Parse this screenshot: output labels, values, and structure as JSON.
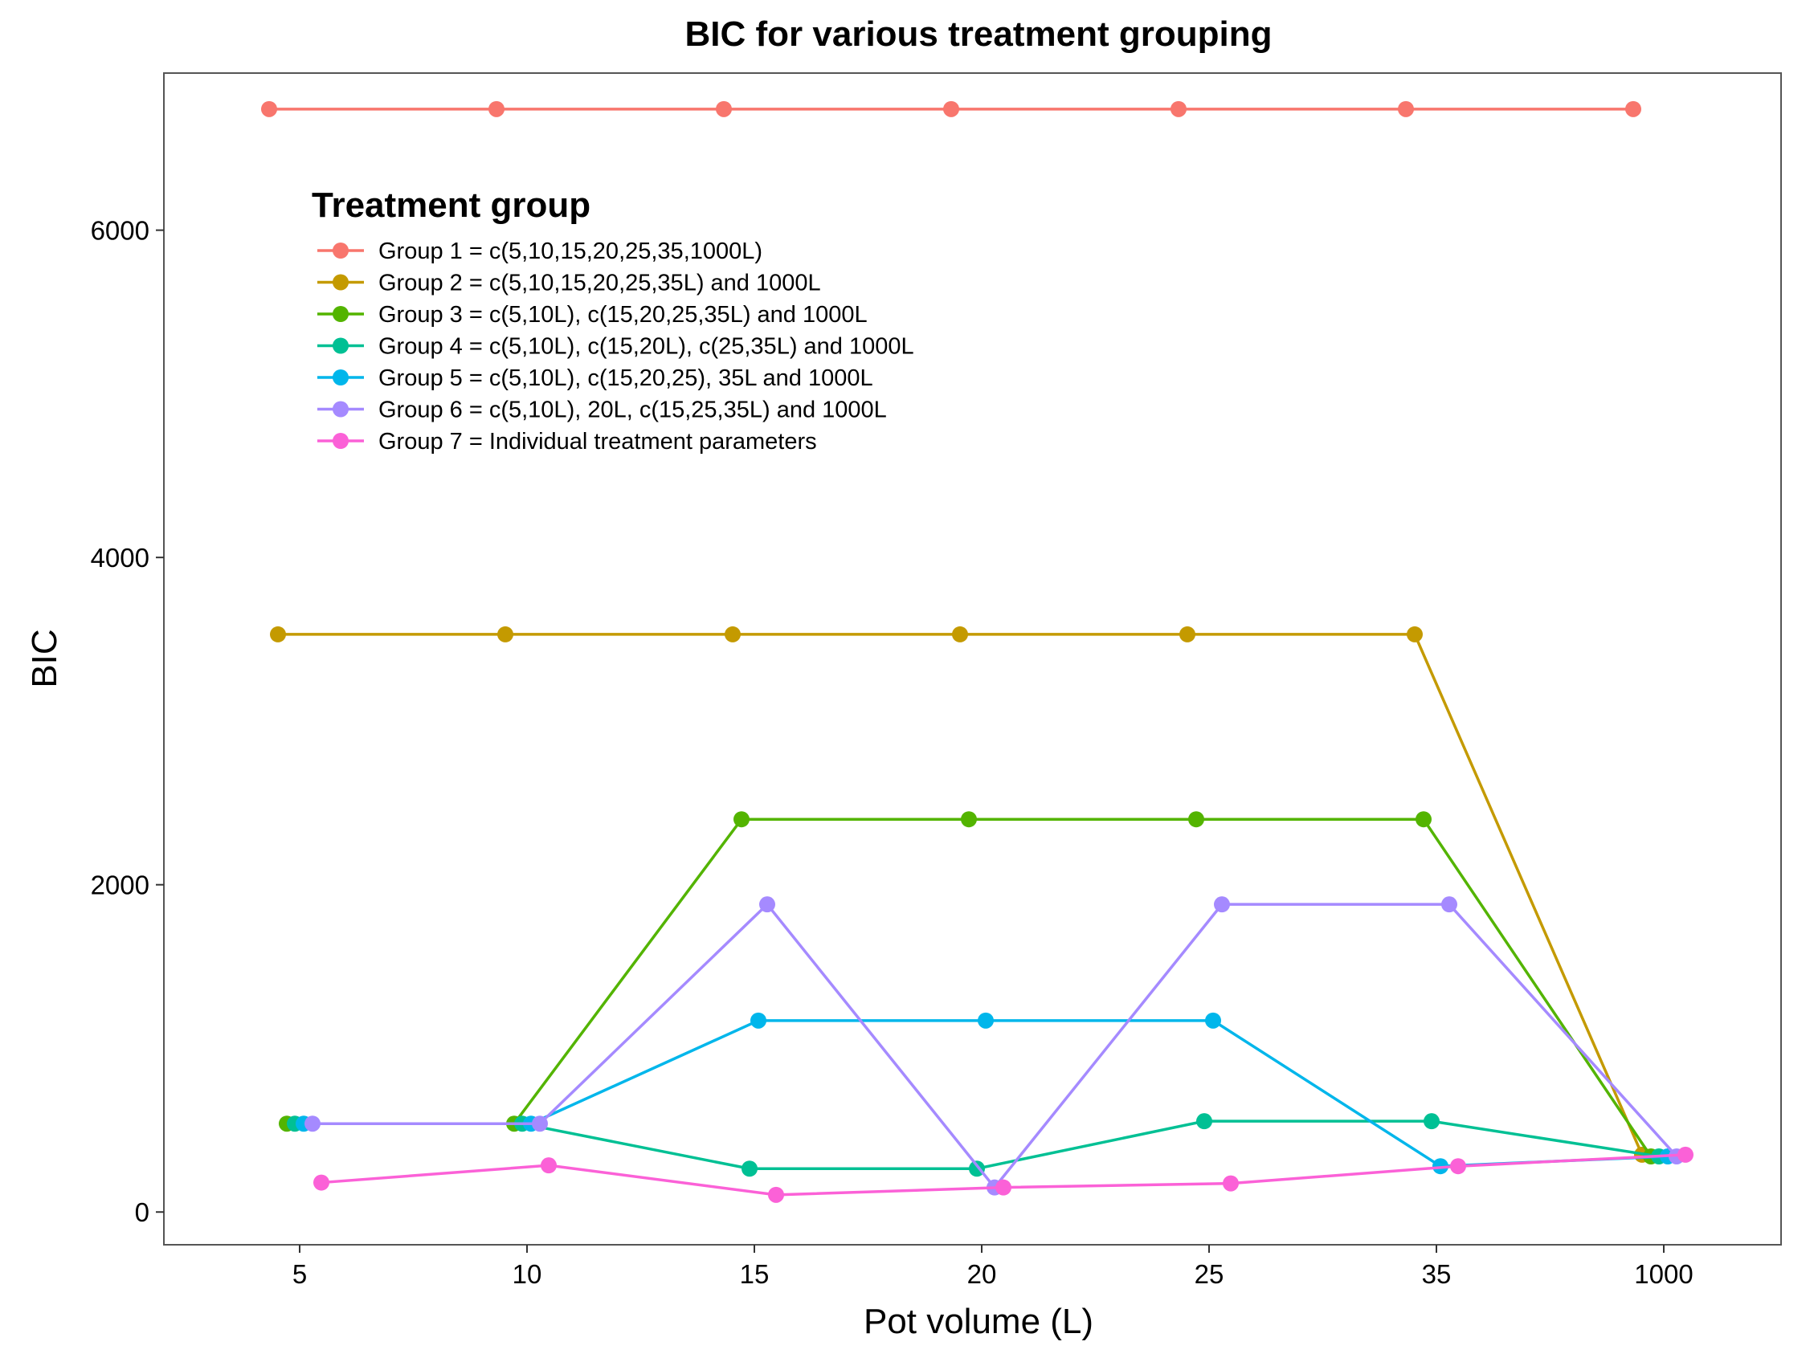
{
  "chart_data": {
    "type": "line",
    "title": "BIC for various treatment grouping",
    "xlabel": "Pot volume (L)",
    "ylabel": "BIC",
    "categories": [
      "5",
      "10",
      "15",
      "20",
      "25",
      "35",
      "1000"
    ],
    "yticks": [
      0,
      2000,
      4000,
      6000
    ],
    "ylim": [
      -200,
      6960
    ],
    "grid": false,
    "legend": {
      "title": "Treatment group",
      "placement": "top-left inside plot"
    },
    "series": [
      {
        "name": "Group 1 = c(5,10,15,20,25,35,1000L)",
        "color": "#F8766D",
        "values": [
          6740,
          6740,
          6740,
          6740,
          6740,
          6740,
          6740
        ]
      },
      {
        "name": "Group 2 = c(5,10,15,20,25,35L) and 1000L",
        "color": "#C49A00",
        "values": [
          3530,
          3530,
          3530,
          3530,
          3530,
          3530,
          350
        ]
      },
      {
        "name": "Group 3 = c(5,10L), c(15,20,25,35L) and 1000L",
        "color": "#53B400",
        "values": [
          540,
          540,
          2400,
          2400,
          2400,
          2400,
          340
        ]
      },
      {
        "name": "Group 4 = c(5,10L), c(15,20L), c(25,35L) and 1000L",
        "color": "#00C094",
        "values": [
          540,
          540,
          265,
          265,
          555,
          555,
          340
        ]
      },
      {
        "name": "Group 5 = c(5,10L), c(15,20,25), 35L and 1000L",
        "color": "#00B6EB",
        "values": [
          540,
          540,
          1170,
          1170,
          1170,
          280,
          340
        ]
      },
      {
        "name": "Group 6 = c(5,10L), 20L, c(15,25,35L) and 1000L",
        "color": "#A58AFF",
        "values": [
          540,
          540,
          1880,
          150,
          1880,
          1880,
          340
        ]
      },
      {
        "name": "Group 7 = Individual treatment parameters",
        "color": "#FB61D7",
        "values": [
          180,
          285,
          105,
          150,
          175,
          280,
          350
        ]
      }
    ]
  }
}
